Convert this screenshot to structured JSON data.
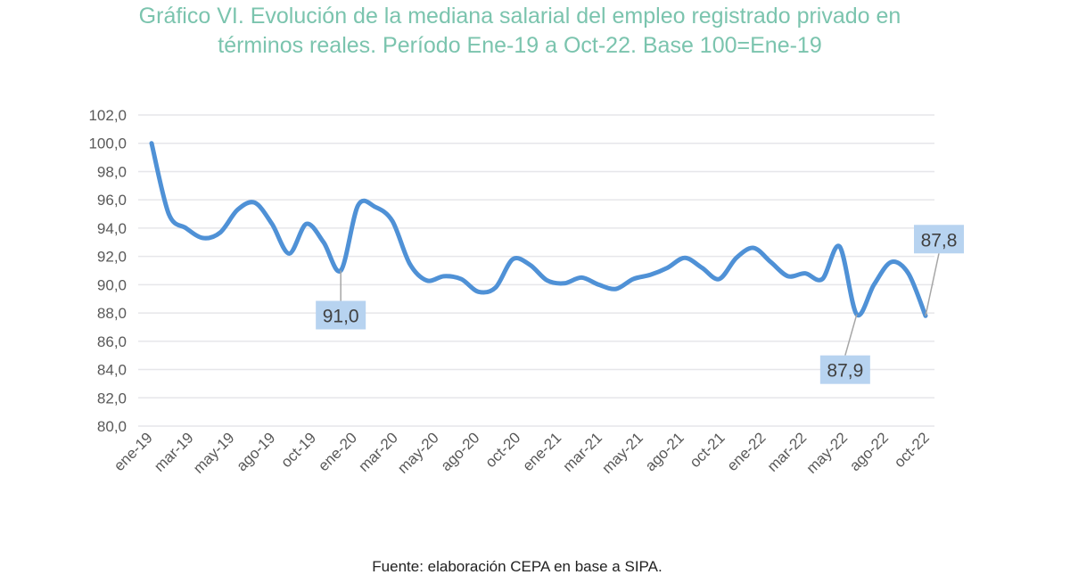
{
  "chart_data": {
    "type": "line",
    "title_lines": [
      "Gráfico VI. Evolución de la mediana salarial del empleo registrado privado en",
      "términos reales. Período Ene-19 a Oct-22. Base 100=Ene-19"
    ],
    "xlabel": "",
    "ylabel": "",
    "ylim": [
      80,
      102
    ],
    "yticks": [
      "80,0",
      "82,0",
      "84,0",
      "86,0",
      "88,0",
      "90,0",
      "92,0",
      "94,0",
      "96,0",
      "98,0",
      "100,0",
      "102,0"
    ],
    "x_tick_labels": [
      "ene-19",
      "mar-19",
      "may-19",
      "ago-19",
      "oct-19",
      "ene-20",
      "mar-20",
      "may-20",
      "ago-20",
      "oct-20",
      "ene-21",
      "mar-21",
      "may-21",
      "ago-21",
      "oct-21",
      "ene-22",
      "mar-22",
      "may-22",
      "ago-22",
      "oct-22"
    ],
    "grid": true,
    "legend": "none",
    "line_color": "#4f91d6",
    "label_bg_color": "#b7d3f0",
    "values": [
      100.0,
      95.0,
      94.0,
      93.3,
      93.7,
      95.3,
      95.8,
      94.3,
      92.2,
      94.3,
      93.0,
      91.0,
      95.6,
      95.5,
      94.5,
      91.5,
      90.3,
      90.6,
      90.4,
      89.5,
      89.8,
      91.8,
      91.4,
      90.3,
      90.1,
      90.5,
      90.0,
      89.7,
      90.4,
      90.7,
      91.2,
      91.9,
      91.2,
      90.4,
      91.9,
      92.6,
      91.6,
      90.6,
      90.8,
      90.4,
      92.7,
      87.9,
      90.0,
      91.6,
      90.8,
      87.8
    ],
    "data_labels": [
      {
        "index": 11,
        "text": "91,0"
      },
      {
        "index": 41,
        "text": "87,9"
      },
      {
        "index": 45,
        "text": "87,8"
      }
    ],
    "source": "Fuente: elaboración CEPA en base a SIPA."
  }
}
